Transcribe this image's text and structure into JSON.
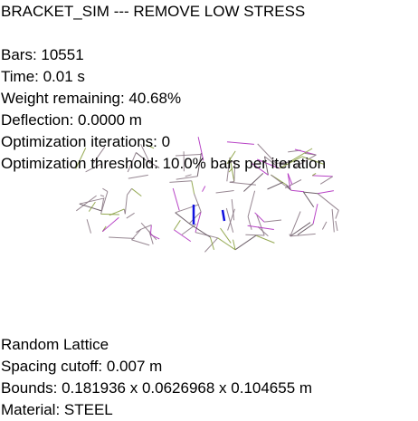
{
  "header": {
    "title": "BRACKET_SIM --- REMOVE LOW STRESS"
  },
  "stats": {
    "bars": "Bars: 10551",
    "time": "Time: 0.01 s",
    "weight": "Weight remaining: 40.68%",
    "deflection": "Deflection: 0.0000 m",
    "iterations": "Optimization iterations: 0",
    "threshold": "Optimization threshold: 10.0% bars per iteration"
  },
  "lattice_info": {
    "type": "Random Lattice",
    "spacing": "Spacing cutoff: 0.007 m",
    "bounds": "Bounds: 0.181936 x 0.0626968 x 0.104655 m",
    "material": "Material: STEEL"
  },
  "colors": {
    "background": "#ffffff",
    "text": "#000000",
    "bar_base": "#8c7a86",
    "bar_dark": "#5e4f5a",
    "bar_tension": "#b030c0",
    "bar_compression": "#8aa040",
    "support": "#1010e0"
  }
}
